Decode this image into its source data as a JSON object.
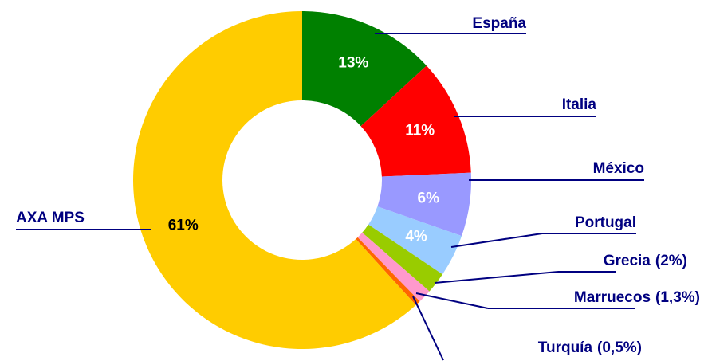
{
  "chart_data": {
    "type": "donut",
    "categories": [
      "España",
      "Italia",
      "México",
      "Portugal",
      "Grecia",
      "Marruecos",
      "Turquía",
      "AXA MPS"
    ],
    "values": [
      13,
      11,
      6,
      4,
      2,
      1.3,
      0.5,
      61
    ],
    "value_labels": [
      "13%",
      "11%",
      "6%",
      "4%",
      "(2%)",
      "(1,3%)",
      "(0,5%)",
      "61%"
    ],
    "colors": [
      "#008000",
      "#ff0000",
      "#9999ff",
      "#99ccff",
      "#99cc00",
      "#ff99cc",
      "#ff6600",
      "#ffcc00"
    ]
  }
}
